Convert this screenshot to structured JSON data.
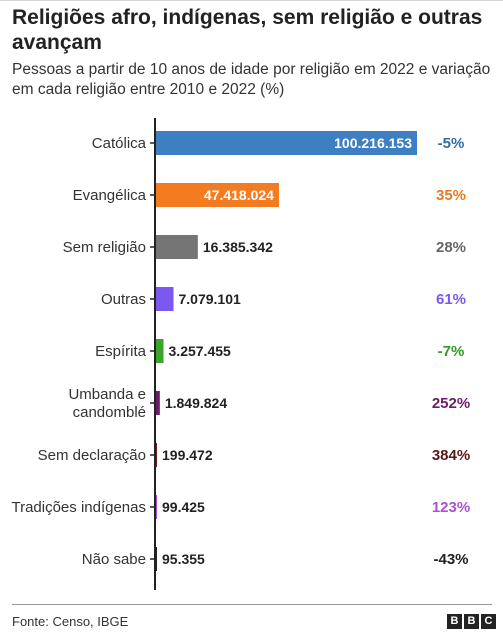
{
  "title": "Religiões afro, indígenas, sem religião e outras avançam",
  "subtitle": "Pessoas a partir de 10 anos de idade por religião em 2022 e variação em cada religião entre 2010 e 2022 (%)",
  "source": "Fonte: Censo, IBGE",
  "logo": [
    "B",
    "B",
    "C"
  ],
  "chart_data": {
    "type": "bar",
    "orientation": "horizontal",
    "title": "Religiões afro, indígenas, sem religião e outras avançam",
    "subtitle": "Pessoas a partir de 10 anos de idade por religião em 2022 e variação em cada religião entre 2010 e 2022 (%)",
    "categories": [
      [
        "Católica"
      ],
      [
        "Evangélica"
      ],
      [
        "Sem religião"
      ],
      [
        "Outras"
      ],
      [
        "Espírita"
      ],
      [
        "Umbanda e",
        "candomblé"
      ],
      [
        "Sem declaração"
      ],
      [
        "Tradições indígenas"
      ],
      [
        "Não sabe"
      ]
    ],
    "values": [
      100216153,
      47418024,
      16385342,
      7079101,
      3257455,
      1849824,
      199472,
      99425,
      95355
    ],
    "value_labels": [
      "100.216.153",
      "47.418.024",
      "16.385.342",
      "7.079.101",
      "3.257.455",
      "1.849.824",
      "199.472",
      "99.425",
      "95.355"
    ],
    "change_labels": [
      "-5%",
      "35%",
      "28%",
      "61%",
      "-7%",
      "252%",
      "384%",
      "123%",
      "-43%"
    ],
    "colors": [
      "#3d7fc1",
      "#f47b20",
      "#757575",
      "#7b58f0",
      "#3ba42a",
      "#6b1d6b",
      "#6b1d1d",
      "#a94bd1",
      "#222222"
    ],
    "change_colors": [
      "#2e6da8",
      "#e8791f",
      "#666666",
      "#7b58f0",
      "#2f9a23",
      "#6b1d6b",
      "#5a1a1a",
      "#b04fd1",
      "#222222"
    ],
    "xlim": [
      0,
      100216153
    ],
    "grid": false
  }
}
